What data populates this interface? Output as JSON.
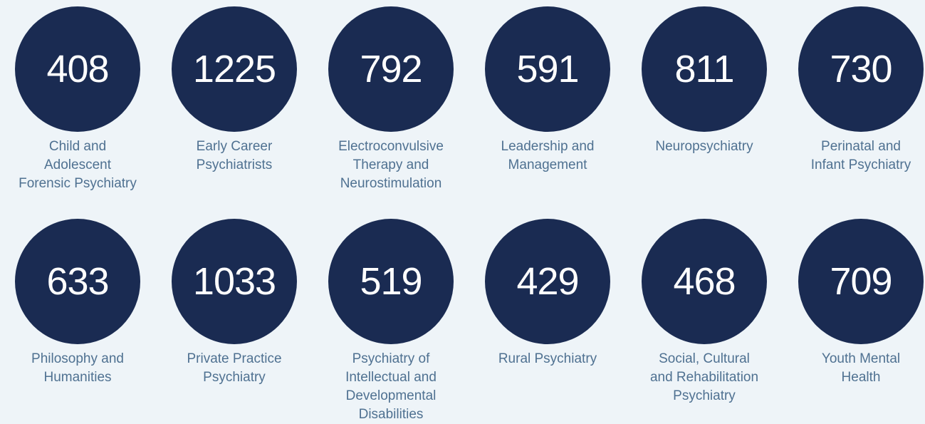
{
  "items": [
    {
      "value": 408,
      "label": [
        "Child and",
        "Adolescent",
        "Forensic Psychiatry"
      ]
    },
    {
      "value": 1225,
      "label": [
        "Early Career",
        "Psychiatrists"
      ]
    },
    {
      "value": 792,
      "label": [
        "Electroconvulsive",
        "Therapy and",
        "Neurostimulation"
      ]
    },
    {
      "value": 591,
      "label": [
        "Leadership and",
        "Management"
      ]
    },
    {
      "value": 811,
      "label": [
        "Neuropsychiatry"
      ]
    },
    {
      "value": 730,
      "label": [
        "Perinatal and",
        "Infant Psychiatry"
      ]
    },
    {
      "value": 633,
      "label": [
        "Philosophy and",
        "Humanities"
      ]
    },
    {
      "value": 1033,
      "label": [
        "Private Practice",
        "Psychiatry"
      ]
    },
    {
      "value": 519,
      "label": [
        "Psychiatry of",
        "Intellectual and",
        "Developmental",
        "Disabilities"
      ]
    },
    {
      "value": 429,
      "label": [
        "Rural Psychiatry"
      ]
    },
    {
      "value": 468,
      "label": [
        "Social, Cultural",
        "and Rehabilitation",
        "Psychiatry"
      ]
    },
    {
      "value": 709,
      "label": [
        "Youth Mental",
        "Health"
      ]
    }
  ]
}
